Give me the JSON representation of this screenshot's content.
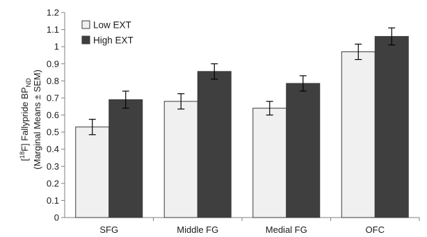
{
  "chart_data": {
    "type": "bar",
    "categories": [
      "SFG",
      "Middle FG",
      "Medial FG",
      "OFC"
    ],
    "series": [
      {
        "name": "Low EXT",
        "values": [
          0.53,
          0.68,
          0.64,
          0.97
        ],
        "errors": [
          0.045,
          0.045,
          0.04,
          0.045
        ],
        "color": "#f0f0f0"
      },
      {
        "name": "High EXT",
        "values": [
          0.69,
          0.855,
          0.785,
          1.06
        ],
        "errors": [
          0.05,
          0.045,
          0.045,
          0.05
        ],
        "color": "#3f3f3f"
      }
    ],
    "ylabel": {
      "line1_prefix": "[",
      "line1_sup": "18",
      "line1_mid": "F] Fallypride BP",
      "line1_sub": "ND",
      "line2": "(Marginal Means ± SEM)"
    },
    "yticks": [
      "0",
      "0.1",
      "0.2",
      "0.3",
      "0.4",
      "0.5",
      "0.6",
      "0.7",
      "0.8",
      "0.9",
      "1",
      "1.1",
      "1.2"
    ],
    "ylim": [
      0,
      1.2
    ],
    "grid": false,
    "legend_position": "top-left"
  }
}
